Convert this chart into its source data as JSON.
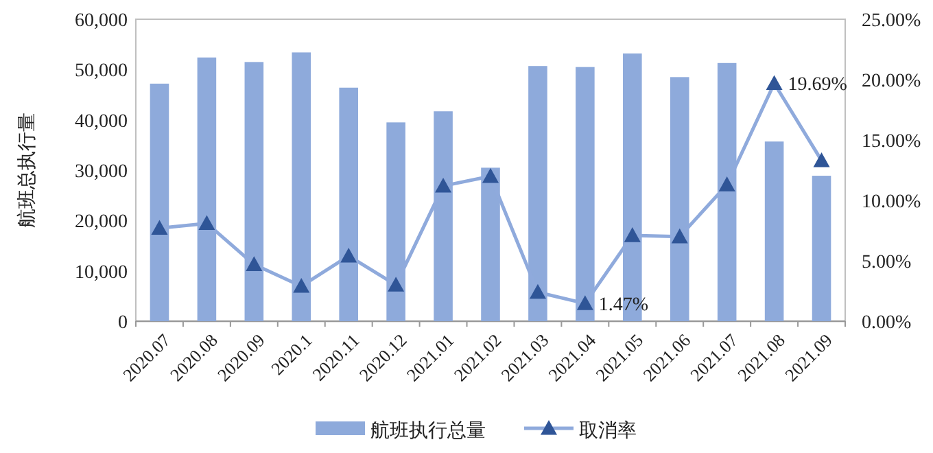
{
  "chart_data": {
    "type": "bar",
    "ylabel": "航班总执行量",
    "categories": [
      "2020.07",
      "2020.08",
      "2020.09",
      "2020.1",
      "2020.11",
      "2020.12",
      "2021.01",
      "2021.02",
      "2021.03",
      "2021.04",
      "2021.05",
      "2021.06",
      "2021.07",
      "2021.08",
      "2021.09"
    ],
    "series": [
      {
        "name": "航班执行总量",
        "color": "#8eaadb",
        "values": [
          47200,
          52400,
          51500,
          53400,
          46400,
          39500,
          41700,
          30500,
          50700,
          50500,
          53200,
          48500,
          51300,
          35700,
          28900
        ]
      },
      {
        "name": "取消率",
        "type": "line",
        "axis": "y2",
        "color": "#8faadc",
        "colors": [
          "#2f5597",
          "#2f5597",
          "#2f5597",
          "#2f5597",
          "#2f5597",
          "#2f5597",
          "#2f5597",
          "#2f5597",
          "#2f5597",
          "#2f5597",
          "#2f5597",
          "#2f5597",
          "#2f5597",
          "#2f5597",
          "#2f5597"
        ],
        "values": [
          7.7,
          8.1,
          4.7,
          2.9,
          5.4,
          3.0,
          11.2,
          12.0,
          2.4,
          1.47,
          7.1,
          7.0,
          11.3,
          19.69,
          13.3
        ],
        "value_labels": [
          null,
          null,
          null,
          null,
          null,
          null,
          null,
          null,
          null,
          "1.47%",
          null,
          null,
          null,
          "19.69%",
          null
        ]
      }
    ],
    "ylim": [
      0,
      60000
    ],
    "yticks": [
      0,
      {
        "value": 10000,
        "label": "10,000"
      },
      {
        "value": 20000,
        "label": "20,000"
      },
      {
        "value": 30000,
        "label": "30,000"
      },
      {
        "value": 40000,
        "label": "40,000"
      },
      {
        "value": 50000,
        "label": "50,000"
      },
      {
        "value": 60000,
        "label": "60,000"
      }
    ],
    "y2lim": [
      0,
      25
    ],
    "y2ticks": [
      {
        "value": 0,
        "label": "0.00%"
      },
      {
        "value": 5,
        "label": "5.00%"
      },
      {
        "value": 10,
        "label": "10.00%"
      },
      {
        "value": 15,
        "label": "15.00%"
      },
      {
        "value": 20,
        "label": "20.00%"
      },
      {
        "value": 25,
        "label": "25.00%"
      }
    ],
    "marker": "triangle",
    "grid": false,
    "legend": "bottom"
  }
}
